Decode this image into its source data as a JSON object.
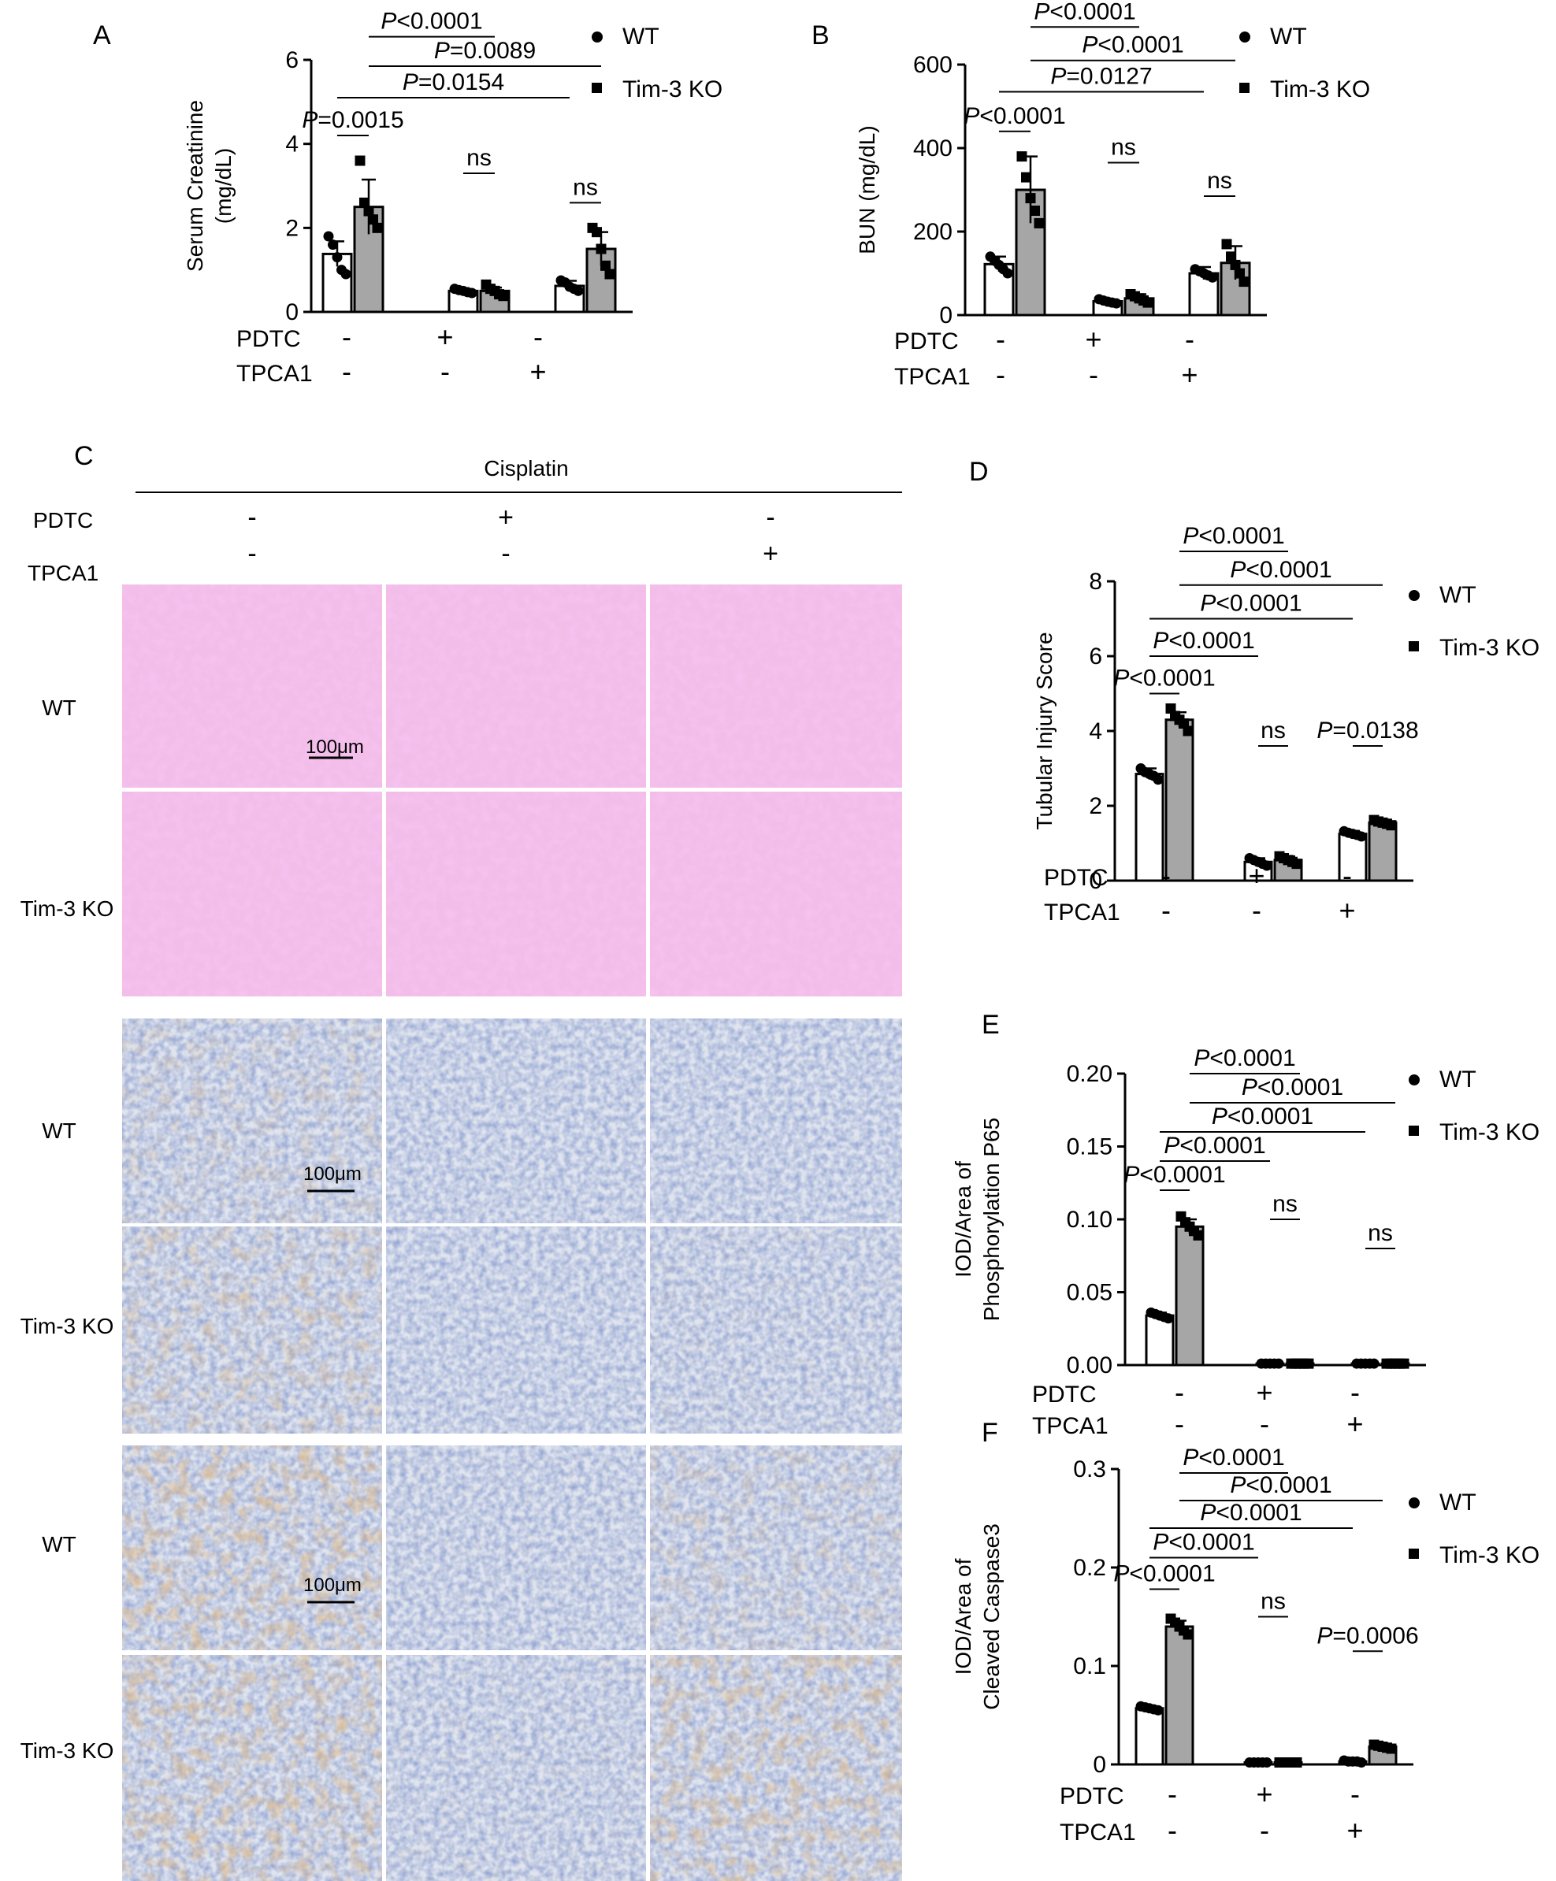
{
  "panel_labels": {
    "A": "A",
    "B": "B",
    "C": "C",
    "D": "D",
    "E": "E",
    "F": "F"
  },
  "legend": {
    "wt": "WT",
    "ko": "Tim-3 KO"
  },
  "treatment": {
    "pdtc_label": "PDTC",
    "tpca1_label": "TPCA1",
    "pdtc": [
      "-",
      "+",
      "-"
    ],
    "tpca1": [
      "-",
      "-",
      "+"
    ]
  },
  "colors": {
    "wt_bar": "#ffffff",
    "ko_bar": "#a6a6a6",
    "axis": "#000000",
    "he_stain": "#e07fd4",
    "ihc_blue": "#8fa7cf",
    "ihc_brown": "#c59a6c"
  },
  "histology": {
    "header": "Cisplatin",
    "pdtc": [
      "-",
      "+",
      "-"
    ],
    "tpca1": [
      "-",
      "-",
      "+"
    ],
    "row_labels": [
      "WT",
      "Tim-3 KO",
      "WT",
      "Tim-3 KO",
      "WT",
      "Tim-3 KO"
    ],
    "scale_bar": "100μm"
  },
  "chart_data": [
    {
      "id": "A",
      "type": "bar",
      "ylabel": "Serum Creatinine (mg/dL)",
      "ylabel_lines": [
        "Serum Creatinine",
        "(mg/dL)"
      ],
      "ylim": [
        0,
        6
      ],
      "yticks": [
        "0",
        "2",
        "4",
        "6"
      ],
      "groups": 3,
      "series": [
        {
          "name": "WT",
          "values": [
            1.38,
            0.5,
            0.62
          ],
          "errors": [
            0.3,
            0.05,
            0.12
          ]
        },
        {
          "name": "Tim-3 KO",
          "values": [
            2.5,
            0.5,
            1.5
          ],
          "errors": [
            0.65,
            0.08,
            0.4
          ]
        }
      ],
      "points": {
        "wt": [
          [
            1.8,
            1.6,
            1.3,
            1.0,
            0.9
          ],
          [
            0.55,
            0.52,
            0.5,
            0.47,
            0.45
          ],
          [
            0.75,
            0.7,
            0.6,
            0.55,
            0.5
          ]
        ],
        "ko": [
          [
            3.6,
            2.6,
            2.4,
            2.2,
            2.0
          ],
          [
            0.65,
            0.55,
            0.5,
            0.42,
            0.38
          ],
          [
            2.0,
            1.9,
            1.5,
            1.1,
            0.9
          ]
        ]
      },
      "annotations": [
        {
          "text": "P=0.0015",
          "p": "P",
          "rest": "=0.0015",
          "y": 4.2,
          "from": [
            0,
            "wt"
          ],
          "to": [
            0,
            "ko"
          ]
        },
        {
          "text": "P=0.0154",
          "p": "P",
          "rest": "=0.0154",
          "y": 5.1,
          "from": [
            0,
            "wt"
          ],
          "to": [
            2,
            "wt"
          ]
        },
        {
          "text": "P=0.0089",
          "p": "P",
          "rest": "=0.0089",
          "y": 5.85,
          "from": [
            0,
            "ko"
          ],
          "to": [
            2,
            "ko"
          ]
        },
        {
          "text": "P<0.0001",
          "p": "P",
          "rest": "<0.0001",
          "y": 6.55,
          "from": [
            0,
            "ko"
          ],
          "to": [
            1,
            "ko"
          ]
        },
        {
          "text": "ns",
          "p": "",
          "rest": "ns",
          "y": 3.3,
          "from": [
            1,
            "wt"
          ],
          "to": [
            1,
            "ko"
          ]
        },
        {
          "text": "ns",
          "p": "",
          "rest": "ns",
          "y": 2.6,
          "from": [
            2,
            "wt"
          ],
          "to": [
            2,
            "ko"
          ]
        }
      ]
    },
    {
      "id": "B",
      "type": "bar",
      "ylabel": "BUN (mg/dL)",
      "ylabel_lines": [
        "BUN (mg/dL)"
      ],
      "ylim": [
        0,
        600
      ],
      "yticks": [
        "0",
        "200",
        "400",
        "600"
      ],
      "groups": 3,
      "series": [
        {
          "name": "WT",
          "values": [
            122,
            33,
            100
          ],
          "errors": [
            18,
            5,
            15
          ]
        },
        {
          "name": "Tim-3 KO",
          "values": [
            300,
            40,
            125
          ],
          "errors": [
            80,
            10,
            40
          ]
        }
      ],
      "points": {
        "wt": [
          [
            140,
            130,
            120,
            110,
            100
          ],
          [
            38,
            35,
            32,
            30,
            28
          ],
          [
            110,
            105,
            100,
            95,
            90
          ]
        ],
        "ko": [
          [
            380,
            330,
            280,
            250,
            220
          ],
          [
            50,
            45,
            40,
            35,
            30
          ],
          [
            170,
            140,
            120,
            100,
            80
          ]
        ]
      },
      "annotations": [
        {
          "text": "P<0.0001",
          "p": "P",
          "rest": "<0.0001",
          "y": 440,
          "from": [
            0,
            "wt"
          ],
          "to": [
            0,
            "ko"
          ]
        },
        {
          "text": "P=0.0127",
          "p": "P",
          "rest": "=0.0127",
          "y": 535,
          "from": [
            0,
            "wt"
          ],
          "to": [
            2,
            "wt"
          ]
        },
        {
          "text": "P<0.0001",
          "p": "P",
          "rest": "<0.0001",
          "y": 610,
          "from": [
            0,
            "ko"
          ],
          "to": [
            2,
            "ko"
          ]
        },
        {
          "text": "P<0.0001",
          "p": "P",
          "rest": "<0.0001",
          "y": 690,
          "from": [
            0,
            "ko"
          ],
          "to": [
            1,
            "ko"
          ]
        },
        {
          "text": "ns",
          "p": "",
          "rest": "ns",
          "y": 365,
          "from": [
            1,
            "wt"
          ],
          "to": [
            1,
            "ko"
          ]
        },
        {
          "text": "ns",
          "p": "",
          "rest": "ns",
          "y": 285,
          "from": [
            2,
            "wt"
          ],
          "to": [
            2,
            "ko"
          ]
        }
      ]
    },
    {
      "id": "D",
      "type": "bar",
      "ylabel": "Tubular Injury Score",
      "ylabel_lines": [
        "Tubular Injury Score"
      ],
      "ylim": [
        0,
        8
      ],
      "yticks": [
        "0",
        "2",
        "4",
        "6",
        "8"
      ],
      "groups": 3,
      "series": [
        {
          "name": "WT",
          "values": [
            2.85,
            0.5,
            1.25
          ],
          "errors": [
            0.15,
            0.1,
            0.08
          ]
        },
        {
          "name": "Tim-3 KO",
          "values": [
            4.3,
            0.55,
            1.55
          ],
          "errors": [
            0.2,
            0.1,
            0.08
          ]
        }
      ],
      "points": {
        "wt": [
          [
            3.0,
            2.9,
            2.85,
            2.8,
            2.7
          ],
          [
            0.6,
            0.55,
            0.5,
            0.45,
            0.4
          ],
          [
            1.32,
            1.28,
            1.25,
            1.22,
            1.18
          ]
        ],
        "ko": [
          [
            4.6,
            4.4,
            4.3,
            4.2,
            4.0
          ],
          [
            0.65,
            0.6,
            0.55,
            0.5,
            0.45
          ],
          [
            1.62,
            1.58,
            1.55,
            1.52,
            1.48
          ]
        ]
      },
      "annotations": [
        {
          "text": "P<0.0001",
          "p": "P",
          "rest": "<0.0001",
          "y": 5.0,
          "from": [
            0,
            "wt"
          ],
          "to": [
            0,
            "ko"
          ]
        },
        {
          "text": "P<0.0001",
          "p": "P",
          "rest": "<0.0001",
          "y": 6.0,
          "from": [
            0,
            "wt"
          ],
          "to": [
            1,
            "wt"
          ]
        },
        {
          "text": "P<0.0001",
          "p": "P",
          "rest": "<0.0001",
          "y": 7.0,
          "from": [
            0,
            "wt"
          ],
          "to": [
            2,
            "wt"
          ]
        },
        {
          "text": "P<0.0001",
          "p": "P",
          "rest": "<0.0001",
          "y": 7.9,
          "from": [
            0,
            "ko"
          ],
          "to": [
            2,
            "ko"
          ]
        },
        {
          "text": "P<0.0001",
          "p": "P",
          "rest": "<0.0001",
          "y": 8.8,
          "from": [
            0,
            "ko"
          ],
          "to": [
            1,
            "ko"
          ]
        },
        {
          "text": "ns",
          "p": "",
          "rest": "ns",
          "y": 3.6,
          "from": [
            1,
            "wt"
          ],
          "to": [
            1,
            "ko"
          ]
        },
        {
          "text": "P=0.0138",
          "p": "P",
          "rest": "=0.0138",
          "y": 3.6,
          "from": [
            2,
            "wt"
          ],
          "to": [
            2,
            "ko"
          ]
        }
      ]
    },
    {
      "id": "E",
      "type": "bar",
      "ylabel": "IOD/Area of Phosphorylation P65",
      "ylabel_lines": [
        "IOD/Area of",
        "Phosphorylation P65"
      ],
      "ylim": [
        0,
        0.2
      ],
      "yticks": [
        "0.00",
        "0.05",
        "0.10",
        "0.15",
        "0.20"
      ],
      "groups": 3,
      "series": [
        {
          "name": "WT",
          "values": [
            0.034,
            0.001,
            0.001
          ],
          "errors": [
            0.002,
            0.0005,
            0.0005
          ]
        },
        {
          "name": "Tim-3 KO",
          "values": [
            0.095,
            0.001,
            0.001
          ],
          "errors": [
            0.005,
            0.0005,
            0.0005
          ]
        }
      ],
      "points": {
        "wt": [
          [
            0.036,
            0.035,
            0.034,
            0.033,
            0.032
          ],
          [
            0.001,
            0.001,
            0.001,
            0.001,
            0.001
          ],
          [
            0.001,
            0.001,
            0.001,
            0.001,
            0.001
          ]
        ],
        "ko": [
          [
            0.102,
            0.098,
            0.095,
            0.092,
            0.089
          ],
          [
            0.001,
            0.001,
            0.001,
            0.001,
            0.001
          ],
          [
            0.001,
            0.001,
            0.001,
            0.001,
            0.001
          ]
        ]
      },
      "annotations": [
        {
          "text": "P<0.0001",
          "p": "P",
          "rest": "<0.0001",
          "y": 0.12,
          "from": [
            0,
            "wt"
          ],
          "to": [
            0,
            "ko"
          ]
        },
        {
          "text": "P<0.0001",
          "p": "P",
          "rest": "<0.0001",
          "y": 0.14,
          "from": [
            0,
            "wt"
          ],
          "to": [
            1,
            "wt"
          ]
        },
        {
          "text": "P<0.0001",
          "p": "P",
          "rest": "<0.0001",
          "y": 0.16,
          "from": [
            0,
            "wt"
          ],
          "to": [
            2,
            "wt"
          ]
        },
        {
          "text": "P<0.0001",
          "p": "P",
          "rest": "<0.0001",
          "y": 0.18,
          "from": [
            0,
            "ko"
          ],
          "to": [
            2,
            "ko"
          ]
        },
        {
          "text": "P<0.0001",
          "p": "P",
          "rest": "<0.0001",
          "y": 0.2,
          "from": [
            0,
            "ko"
          ],
          "to": [
            1,
            "ko"
          ]
        },
        {
          "text": "ns",
          "p": "",
          "rest": "ns",
          "y": 0.1,
          "from": [
            1,
            "wt"
          ],
          "to": [
            1,
            "ko"
          ]
        },
        {
          "text": "ns",
          "p": "",
          "rest": "ns",
          "y": 0.08,
          "from": [
            2,
            "wt"
          ],
          "to": [
            2,
            "ko"
          ]
        }
      ]
    },
    {
      "id": "F",
      "type": "bar",
      "ylabel": "IOD/Area of Cleaved Caspase3",
      "ylabel_lines": [
        "IOD/Area of",
        "Cleaved Caspase3"
      ],
      "ylim": [
        0,
        0.3
      ],
      "yticks": [
        "0",
        "0.1",
        "0.2",
        "0.3"
      ],
      "groups": 3,
      "series": [
        {
          "name": "WT",
          "values": [
            0.057,
            0.002,
            0.003
          ],
          "errors": [
            0.002,
            0.001,
            0.001
          ]
        },
        {
          "name": "Tim-3 KO",
          "values": [
            0.14,
            0.002,
            0.018
          ],
          "errors": [
            0.006,
            0.001,
            0.002
          ]
        }
      ],
      "points": {
        "wt": [
          [
            0.059,
            0.058,
            0.057,
            0.056,
            0.055
          ],
          [
            0.002,
            0.002,
            0.002,
            0.002,
            0.002
          ],
          [
            0.004,
            0.003,
            0.003,
            0.003,
            0.002
          ]
        ],
        "ko": [
          [
            0.148,
            0.144,
            0.14,
            0.136,
            0.132
          ],
          [
            0.002,
            0.002,
            0.002,
            0.002,
            0.002
          ],
          [
            0.02,
            0.019,
            0.018,
            0.017,
            0.016
          ]
        ]
      },
      "annotations": [
        {
          "text": "P<0.0001",
          "p": "P",
          "rest": "<0.0001",
          "y": 0.178,
          "from": [
            0,
            "wt"
          ],
          "to": [
            0,
            "ko"
          ]
        },
        {
          "text": "P<0.0001",
          "p": "P",
          "rest": "<0.0001",
          "y": 0.21,
          "from": [
            0,
            "wt"
          ],
          "to": [
            1,
            "wt"
          ]
        },
        {
          "text": "P<0.0001",
          "p": "P",
          "rest": "<0.0001",
          "y": 0.24,
          "from": [
            0,
            "wt"
          ],
          "to": [
            2,
            "wt"
          ]
        },
        {
          "text": "P<0.0001",
          "p": "P",
          "rest": "<0.0001",
          "y": 0.268,
          "from": [
            0,
            "ko"
          ],
          "to": [
            2,
            "ko"
          ]
        },
        {
          "text": "P<0.0001",
          "p": "P",
          "rest": "<0.0001",
          "y": 0.296,
          "from": [
            0,
            "ko"
          ],
          "to": [
            1,
            "ko"
          ]
        },
        {
          "text": "ns",
          "p": "",
          "rest": "ns",
          "y": 0.15,
          "from": [
            1,
            "wt"
          ],
          "to": [
            1,
            "ko"
          ]
        },
        {
          "text": "P=0.0006",
          "p": "P",
          "rest": "=0.0006",
          "y": 0.115,
          "from": [
            2,
            "wt"
          ],
          "to": [
            2,
            "ko"
          ]
        }
      ]
    }
  ]
}
